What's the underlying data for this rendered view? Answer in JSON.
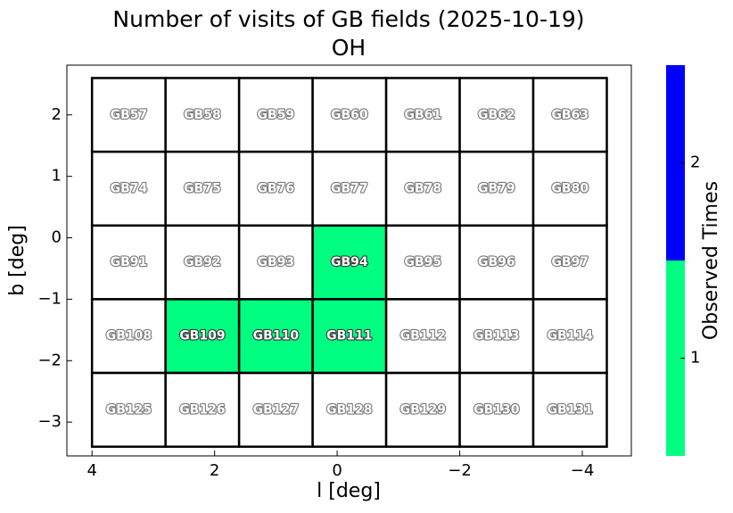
{
  "chart_data": {
    "type": "field-grid",
    "title": "Number of visits of GB fields (2025-10-19)",
    "subtitle": "OH",
    "x_label": "l [deg]",
    "y_label": "b [deg]",
    "xlim": [
      4.41,
      -4.8
    ],
    "ylim": [
      -3.55,
      2.81
    ],
    "xticks": [
      4,
      2,
      0,
      {
        "value": -2,
        "label": "−2"
      },
      {
        "value": -4,
        "label": "−4"
      }
    ],
    "yticks": [
      2,
      1,
      0,
      {
        "value": -1,
        "label": "−1"
      },
      {
        "value": -2,
        "label": "−2"
      },
      {
        "value": -3,
        "label": "−3"
      }
    ],
    "empty_color": "#ffffff",
    "fields": [
      {
        "name": "GB57",
        "l": [
          4.0,
          2.8
        ],
        "b": [
          2.6,
          1.4
        ],
        "visits": 0
      },
      {
        "name": "GB58",
        "l": [
          2.8,
          1.6
        ],
        "b": [
          2.6,
          1.4
        ],
        "visits": 0
      },
      {
        "name": "GB59",
        "l": [
          1.6,
          0.4
        ],
        "b": [
          2.6,
          1.4
        ],
        "visits": 0
      },
      {
        "name": "GB60",
        "l": [
          0.4,
          -0.8
        ],
        "b": [
          2.6,
          1.4
        ],
        "visits": 0
      },
      {
        "name": "GB61",
        "l": [
          -0.8,
          -2.0
        ],
        "b": [
          2.6,
          1.4
        ],
        "visits": 0
      },
      {
        "name": "GB62",
        "l": [
          -2.0,
          -3.2
        ],
        "b": [
          2.6,
          1.4
        ],
        "visits": 0
      },
      {
        "name": "GB63",
        "l": [
          -3.2,
          -4.4
        ],
        "b": [
          2.6,
          1.4
        ],
        "visits": 0
      },
      {
        "name": "GB74",
        "l": [
          4.0,
          2.8
        ],
        "b": [
          1.4,
          0.2
        ],
        "visits": 0
      },
      {
        "name": "GB75",
        "l": [
          2.8,
          1.6
        ],
        "b": [
          1.4,
          0.2
        ],
        "visits": 0
      },
      {
        "name": "GB76",
        "l": [
          1.6,
          0.4
        ],
        "b": [
          1.4,
          0.2
        ],
        "visits": 0
      },
      {
        "name": "GB77",
        "l": [
          0.4,
          -0.8
        ],
        "b": [
          1.4,
          0.2
        ],
        "visits": 0
      },
      {
        "name": "GB78",
        "l": [
          -0.8,
          -2.0
        ],
        "b": [
          1.4,
          0.2
        ],
        "visits": 0
      },
      {
        "name": "GB79",
        "l": [
          -2.0,
          -3.2
        ],
        "b": [
          1.4,
          0.2
        ],
        "visits": 0
      },
      {
        "name": "GB80",
        "l": [
          -3.2,
          -4.4
        ],
        "b": [
          1.4,
          0.2
        ],
        "visits": 0
      },
      {
        "name": "GB91",
        "l": [
          4.0,
          2.8
        ],
        "b": [
          0.2,
          -1.0
        ],
        "visits": 0
      },
      {
        "name": "GB92",
        "l": [
          2.8,
          1.6
        ],
        "b": [
          0.2,
          -1.0
        ],
        "visits": 0
      },
      {
        "name": "GB93",
        "l": [
          1.6,
          0.4
        ],
        "b": [
          0.2,
          -1.0
        ],
        "visits": 0
      },
      {
        "name": "GB94",
        "l": [
          0.4,
          -0.8
        ],
        "b": [
          0.2,
          -1.0
        ],
        "visits": 1
      },
      {
        "name": "GB95",
        "l": [
          -0.8,
          -2.0
        ],
        "b": [
          0.2,
          -1.0
        ],
        "visits": 0
      },
      {
        "name": "GB96",
        "l": [
          -2.0,
          -3.2
        ],
        "b": [
          0.2,
          -1.0
        ],
        "visits": 0
      },
      {
        "name": "GB97",
        "l": [
          -3.2,
          -4.4
        ],
        "b": [
          0.2,
          -1.0
        ],
        "visits": 0
      },
      {
        "name": "GB108",
        "l": [
          4.0,
          2.8
        ],
        "b": [
          -1.0,
          -2.2
        ],
        "visits": 0
      },
      {
        "name": "GB109",
        "l": [
          2.8,
          1.6
        ],
        "b": [
          -1.0,
          -2.2
        ],
        "visits": 1
      },
      {
        "name": "GB110",
        "l": [
          1.6,
          0.4
        ],
        "b": [
          -1.0,
          -2.2
        ],
        "visits": 1
      },
      {
        "name": "GB111",
        "l": [
          0.4,
          -0.8
        ],
        "b": [
          -1.0,
          -2.2
        ],
        "visits": 1
      },
      {
        "name": "GB112",
        "l": [
          -0.8,
          -2.0
        ],
        "b": [
          -1.0,
          -2.2
        ],
        "visits": 0
      },
      {
        "name": "GB113",
        "l": [
          -2.0,
          -3.2
        ],
        "b": [
          -1.0,
          -2.2
        ],
        "visits": 0
      },
      {
        "name": "GB114",
        "l": [
          -3.2,
          -4.4
        ],
        "b": [
          -1.0,
          -2.2
        ],
        "visits": 0
      },
      {
        "name": "GB125",
        "l": [
          4.0,
          2.8
        ],
        "b": [
          -2.2,
          -3.4
        ],
        "visits": 0
      },
      {
        "name": "GB126",
        "l": [
          2.8,
          1.6
        ],
        "b": [
          -2.2,
          -3.4
        ],
        "visits": 0
      },
      {
        "name": "GB127",
        "l": [
          1.6,
          0.4
        ],
        "b": [
          -2.2,
          -3.4
        ],
        "visits": 0
      },
      {
        "name": "GB128",
        "l": [
          0.4,
          -0.8
        ],
        "b": [
          -2.2,
          -3.4
        ],
        "visits": 0
      },
      {
        "name": "GB129",
        "l": [
          -0.8,
          -2.0
        ],
        "b": [
          -2.2,
          -3.4
        ],
        "visits": 0
      },
      {
        "name": "GB130",
        "l": [
          -2.0,
          -3.2
        ],
        "b": [
          -2.2,
          -3.4
        ],
        "visits": 0
      },
      {
        "name": "GB131",
        "l": [
          -3.2,
          -4.4
        ],
        "b": [
          -2.2,
          -3.4
        ],
        "visits": 0
      }
    ],
    "colorbar": {
      "label": "Observed Times",
      "lim": [
        0.5,
        2.5
      ],
      "bounds": [
        0.5,
        1.5,
        2.5
      ],
      "colors": [
        "#00ff80",
        "#0000ff"
      ],
      "ticks": [
        1,
        2
      ]
    }
  }
}
